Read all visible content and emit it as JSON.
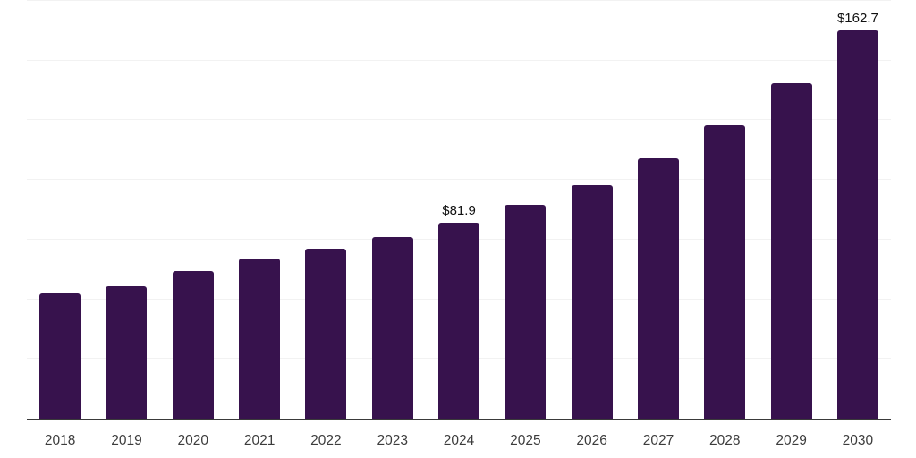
{
  "chart_data": {
    "type": "bar",
    "title": "",
    "xlabel": "",
    "ylabel": "",
    "categories": [
      "2018",
      "2019",
      "2020",
      "2021",
      "2022",
      "2023",
      "2024",
      "2025",
      "2026",
      "2027",
      "2028",
      "2029",
      "2030"
    ],
    "values": [
      52.4,
      55.5,
      62.0,
      67.0,
      71.1,
      76.0,
      81.9,
      89.4,
      97.8,
      109.0,
      122.9,
      140.5,
      162.7
    ],
    "data_labels": [
      "",
      "",
      "",
      "",
      "",
      "",
      "$81.9",
      "",
      "",
      "",
      "",
      "",
      "$162.7"
    ],
    "ylim": [
      0,
      175
    ],
    "y_gridlines": [
      25,
      50,
      75,
      100,
      125,
      150,
      175
    ],
    "grid": "horizontal-only",
    "legend": "none",
    "y_axis_labels_visible": false,
    "colors": {
      "bar": "#37124D",
      "gridline": "#F2F2F2",
      "axis_line": "#3A3A3A",
      "tick_label": "#3C3C3C",
      "data_label": "#111111",
      "background": "#FFFFFF"
    }
  }
}
